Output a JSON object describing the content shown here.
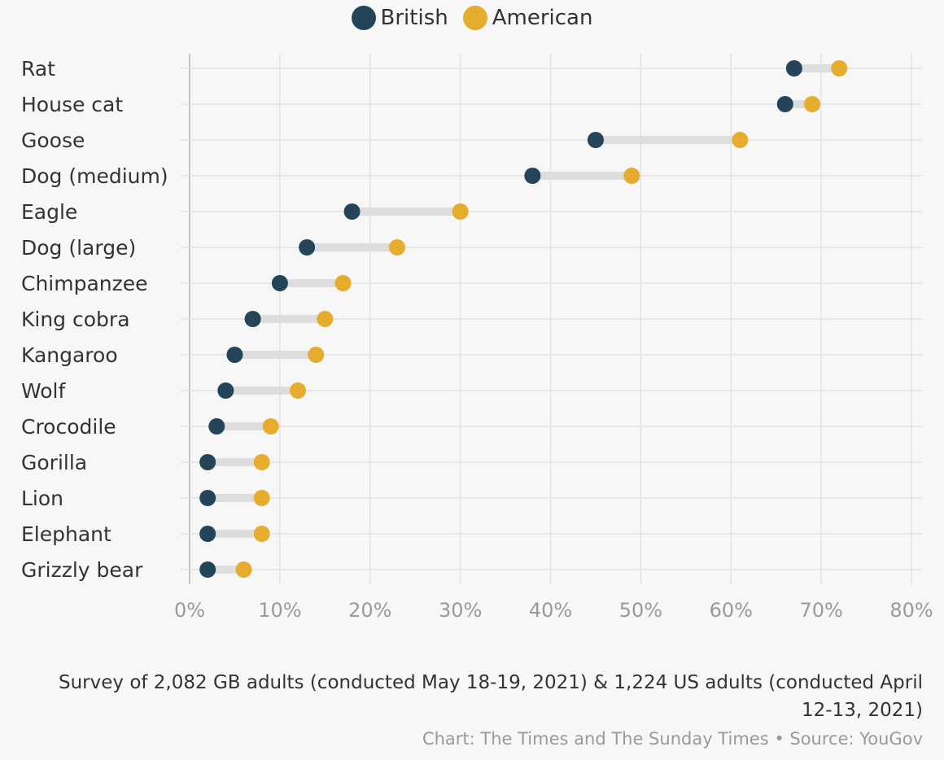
{
  "legend": {
    "british_label": "British",
    "american_label": "American"
  },
  "colors": {
    "british": "#244459",
    "american": "#e5ac2e",
    "connector": "#dddddd",
    "grid": "#e2e2e2",
    "axis": "#c4c4c4"
  },
  "chart_data": {
    "type": "dumbbell",
    "categories": [
      "Rat",
      "House cat",
      "Goose",
      "Dog (medium)",
      "Eagle",
      "Dog (large)",
      "Chimpanzee",
      "King cobra",
      "Kangaroo",
      "Wolf",
      "Crocodile",
      "Gorilla",
      "Lion",
      "Elephant",
      "Grizzly bear"
    ],
    "series": [
      {
        "name": "British",
        "values": [
          67,
          66,
          45,
          38,
          18,
          13,
          10,
          7,
          5,
          4,
          3,
          2,
          2,
          2,
          2
        ]
      },
      {
        "name": "American",
        "values": [
          72,
          69,
          61,
          49,
          30,
          23,
          17,
          15,
          14,
          12,
          9,
          8,
          8,
          8,
          6
        ]
      }
    ],
    "x_ticks": [
      "0%",
      "10%",
      "20%",
      "30%",
      "40%",
      "50%",
      "60%",
      "70%",
      "80%"
    ],
    "xlim": [
      0,
      80
    ],
    "grid": true,
    "legend_position": "top-center"
  },
  "footnote": "Survey of 2,082 GB adults (conducted May 18-19, 2021) & 1,224 US adults (conducted April 12-13, 2021)",
  "credit": "Chart: The Times and The Sunday Times • Source: YouGov"
}
